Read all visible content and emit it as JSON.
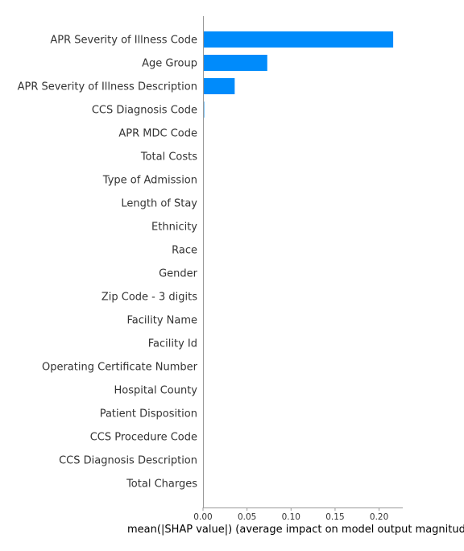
{
  "chart_data": {
    "type": "bar",
    "orientation": "horizontal",
    "categories": [
      "APR Severity of Illness Code",
      "Age Group",
      "APR Severity of Illness Description",
      "CCS Diagnosis Code",
      "APR MDC Code",
      "Total Costs",
      "Type of Admission",
      "Length of Stay",
      "Ethnicity",
      "Race",
      "Gender",
      "Zip Code - 3 digits",
      "Facility Name",
      "Facility Id",
      "Operating Certificate Number",
      "Hospital County",
      "Patient Disposition",
      "CCS Procedure Code",
      "CCS Diagnosis Description",
      "Total Charges"
    ],
    "values": [
      0.216,
      0.073,
      0.036,
      0.001,
      0,
      0,
      0,
      0,
      0,
      0,
      0,
      0,
      0,
      0,
      0,
      0,
      0,
      0,
      0,
      0
    ],
    "xlabel": "mean(|SHAP value|) (average impact on model output magnitude)",
    "xlim": [
      0,
      0.228
    ],
    "xticks": [
      0.0,
      0.05,
      0.1,
      0.15,
      0.2
    ],
    "xtick_labels": [
      "0.00",
      "0.05",
      "0.10",
      "0.15",
      "0.20"
    ],
    "bar_color": "#008bfb",
    "axis_color": "#999999",
    "grid": false
  }
}
